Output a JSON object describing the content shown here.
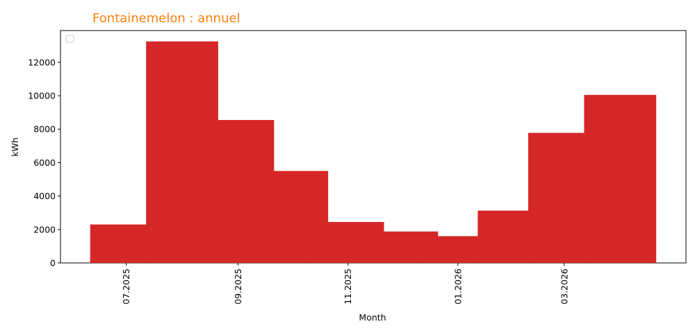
{
  "chart_data": {
    "type": "bar",
    "title": "Fontainemelon : annuel",
    "xlabel": "Month",
    "ylabel": "kWh",
    "categories": [
      "07.2025",
      "08.2025",
      "09.2025",
      "10.2025",
      "11.2025",
      "12.2025",
      "01.2026",
      "02.2026",
      "03.2026",
      "04.2026"
    ],
    "x_dates": [
      "2025-07-01",
      "2025-08-01",
      "2025-09-01",
      "2025-10-01",
      "2025-11-01",
      "2025-12-01",
      "2026-01-01",
      "2026-02-01",
      "2026-03-01",
      "2026-04-01"
    ],
    "x_tick_labels": [
      "07.2025",
      "09.2025",
      "11.2025",
      "01.2026",
      "03.2026"
    ],
    "x_tick_dates": [
      "2025-07-01",
      "2025-09-01",
      "2025-11-01",
      "2026-01-01",
      "2026-03-01"
    ],
    "values": [
      2300,
      13250,
      8550,
      5500,
      2450,
      1880,
      1600,
      3130,
      7780,
      10050
    ],
    "ylim": [
      0,
      13900
    ],
    "y_ticks": [
      0,
      2000,
      4000,
      6000,
      8000,
      10000,
      12000
    ],
    "grid": false,
    "legend": "top-left, empty",
    "colors": {
      "bar": "#d62728",
      "title": "#ff7f0e",
      "axis": "#000000"
    }
  }
}
